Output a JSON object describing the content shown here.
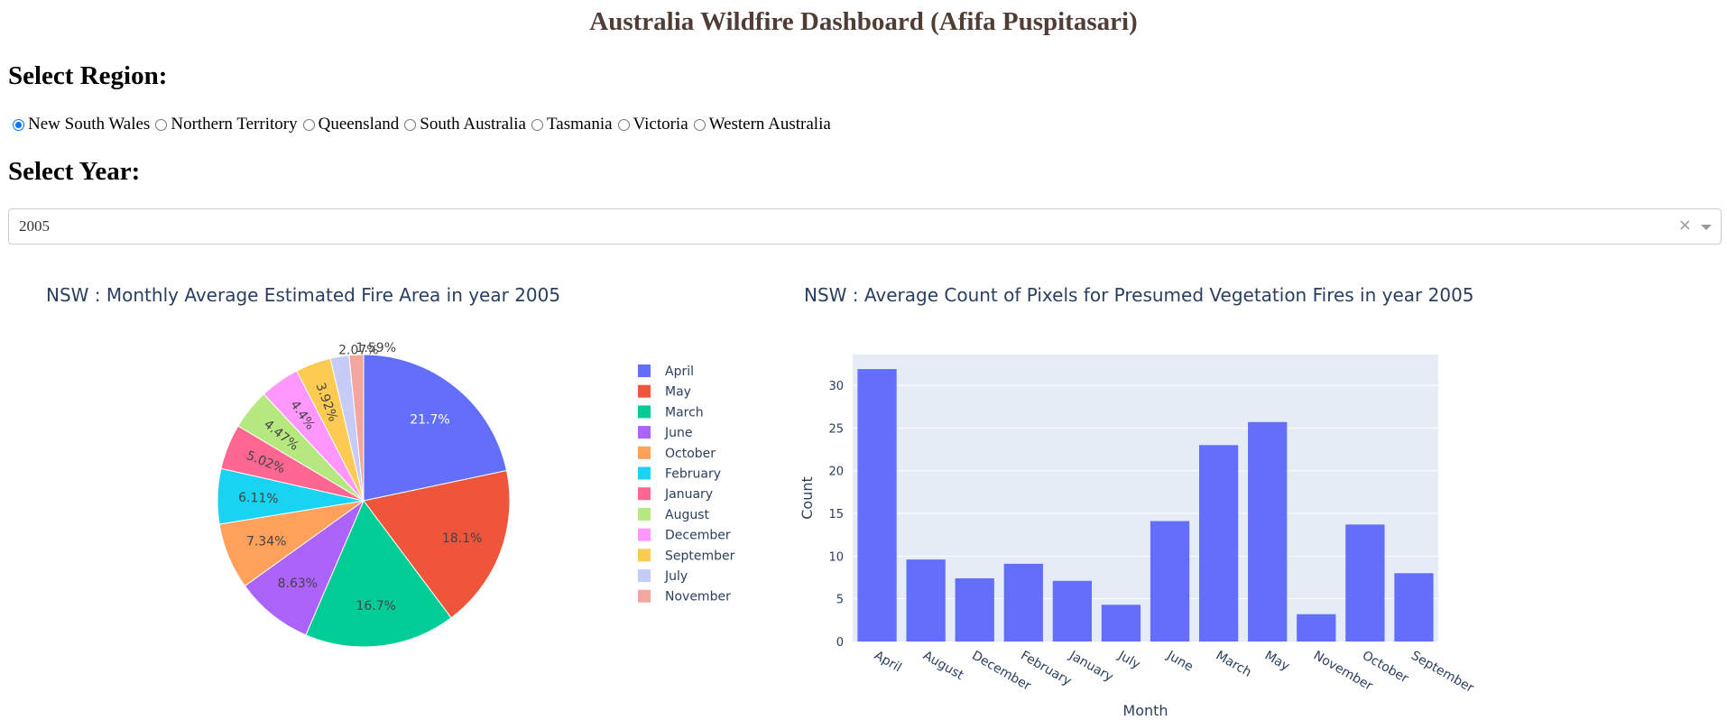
{
  "page_title": "Australia Wildfire Dashboard (Afifa Puspitasari)",
  "region_heading": "Select Region:",
  "regions": [
    "New South Wales",
    "Northern Territory",
    "Queensland",
    "South Australia",
    "Tasmania",
    "Victoria",
    "Western Australia"
  ],
  "selected_region": "New South Wales",
  "year_heading": "Select Year:",
  "year_dropdown": {
    "value": "2005",
    "clear_icon": "close-icon",
    "arrow_icon": "chevron-down-icon"
  },
  "chart_data": [
    {
      "type": "pie",
      "title": "NSW : Monthly Average Estimated Fire Area in year 2005",
      "labels": [
        "April",
        "May",
        "March",
        "June",
        "October",
        "February",
        "January",
        "August",
        "December",
        "September",
        "July",
        "November"
      ],
      "values": [
        21.7,
        18.1,
        16.7,
        8.63,
        7.34,
        6.11,
        5.02,
        4.47,
        4.4,
        3.92,
        2.07,
        1.59
      ],
      "value_labels": [
        "21.7%",
        "18.1%",
        "16.7%",
        "8.63%",
        "7.34%",
        "6.11%",
        "5.02%",
        "4.47%",
        "4.4%",
        "3.92%",
        "2.07%",
        "1.59%"
      ],
      "colors": [
        "#636efa",
        "#ef553b",
        "#00cc96",
        "#ab63fa",
        "#ffa15a",
        "#19d3f3",
        "#ff6692",
        "#b6e880",
        "#ff97ff",
        "#fecb52",
        "#c6cbf7",
        "#f2a69d"
      ],
      "legend": "right"
    },
    {
      "type": "bar",
      "title": "NSW : Average Count of Pixels for Presumed Vegetation Fires in year 2005",
      "categories": [
        "April",
        "August",
        "December",
        "February",
        "January",
        "July",
        "June",
        "March",
        "May",
        "November",
        "October",
        "September"
      ],
      "values": [
        31.9,
        9.6,
        7.4,
        9.1,
        7.1,
        4.3,
        14.1,
        23.0,
        25.7,
        3.2,
        13.7,
        8.0
      ],
      "xlabel": "Month",
      "ylabel": "Count",
      "ylim": [
        0,
        33.6
      ],
      "yticks": [
        "0",
        "5",
        "10",
        "15",
        "20",
        "25",
        "30"
      ],
      "bar_color": "#636efa",
      "plot_bg": "#e5ecf6",
      "grid": true
    }
  ]
}
